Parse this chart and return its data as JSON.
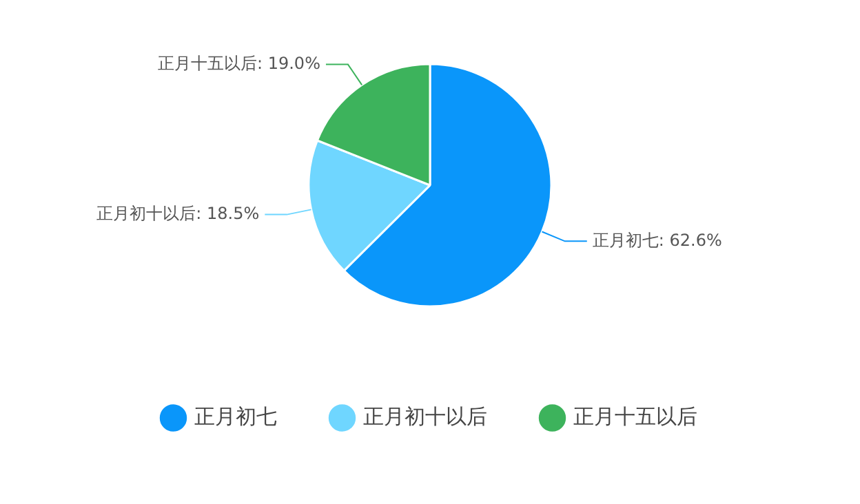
{
  "chart_data": {
    "type": "pie",
    "categories": [
      "正月初七",
      "正月初十以后",
      "正月十五以后"
    ],
    "values": [
      62.6,
      18.5,
      19.0
    ],
    "colors": [
      "#0a96fa",
      "#6fd6ff",
      "#3db35c"
    ],
    "value_labels": [
      "正月初七: 62.6%",
      "正月初十以后: 18.5%",
      "正月十五以后: 19.0%"
    ],
    "legend": "bottom"
  }
}
